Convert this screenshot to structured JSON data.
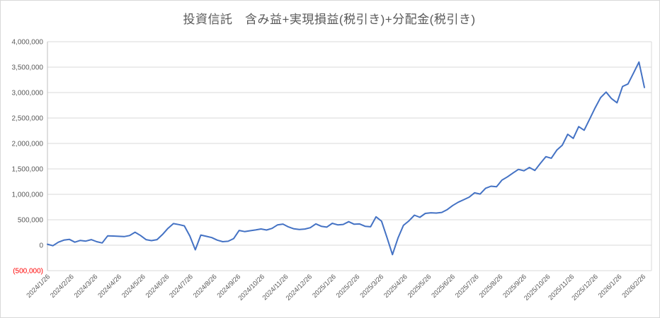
{
  "title": "投資信託　含み益+実現損益(税引き)+分配金(税引き)",
  "colors": {
    "series_blue": "#4472C4",
    "negative_label_red": "#FF0000",
    "gridline_gray": "#D9D9D9",
    "axis_gray": "#BFBFBF",
    "text_gray": "#595959",
    "background": "#FFFFFF"
  },
  "chart_data": {
    "type": "line",
    "title": "投資信託　含み益+実現損益(税引き)+分配金(税引き)",
    "xlabel": "",
    "ylabel": "",
    "ylim": [
      -500000,
      4000000
    ],
    "grid": true,
    "legend_position": "none",
    "y_tick_labels": [
      "4,000,000",
      "3,500,000",
      "3,000,000",
      "2,500,000",
      "2,000,000",
      "1,500,000",
      "1,000,000",
      "500,000",
      "0",
      "(500,000)"
    ],
    "y_tick_values": [
      4000000,
      3500000,
      3000000,
      2500000,
      2000000,
      1500000,
      1000000,
      500000,
      0,
      -500000
    ],
    "x_labels": [
      "2024/1/26",
      "2024/2/26",
      "2024/3/26",
      "2024/4/26",
      "2024/5/26",
      "2024/6/26",
      "2024/7/26",
      "2024/8/26",
      "2024/9/26",
      "2024/10/26",
      "2024/11/26",
      "2024/12/26",
      "2025/1/26",
      "2025/2/26",
      "2025/3/26",
      "2025/4/26",
      "2025/5/26",
      "2025/6/26",
      "2025/7/26",
      "2025/8/26",
      "2025/9/26",
      "2025/10/26",
      "2025/11/26",
      "2025/12/26",
      "2026/1/26",
      "2026/2/26"
    ],
    "x_interval": "weekly",
    "series": [
      {
        "name": "含み益+実現損益(税引き)+分配金(税引き)",
        "color": "#4472C4",
        "values": [
          20000,
          -10000,
          60000,
          100000,
          115000,
          60000,
          95000,
          80000,
          110000,
          70000,
          45000,
          185000,
          180000,
          175000,
          170000,
          190000,
          255000,
          190000,
          110000,
          90000,
          110000,
          210000,
          330000,
          425000,
          405000,
          380000,
          180000,
          -90000,
          200000,
          175000,
          150000,
          100000,
          70000,
          78000,
          130000,
          290000,
          268000,
          285000,
          300000,
          320000,
          298000,
          330000,
          398000,
          415000,
          360000,
          322000,
          310000,
          318000,
          345000,
          420000,
          372000,
          355000,
          430000,
          400000,
          408000,
          462000,
          412000,
          418000,
          372000,
          362000,
          558000,
          472000,
          150000,
          -185000,
          140000,
          390000,
          478000,
          590000,
          548000,
          625000,
          638000,
          632000,
          645000,
          700000,
          780000,
          845000,
          895000,
          945000,
          1030000,
          1005000,
          1120000,
          1160000,
          1150000,
          1280000,
          1345000,
          1420000,
          1490000,
          1462000,
          1528000,
          1470000,
          1610000,
          1740000,
          1710000,
          1870000,
          1965000,
          2180000,
          2100000,
          2330000,
          2260000,
          2480000,
          2700000,
          2900000,
          3010000,
          2880000,
          2800000,
          3120000,
          3170000,
          3380000,
          3600000,
          3100000
        ]
      }
    ]
  }
}
